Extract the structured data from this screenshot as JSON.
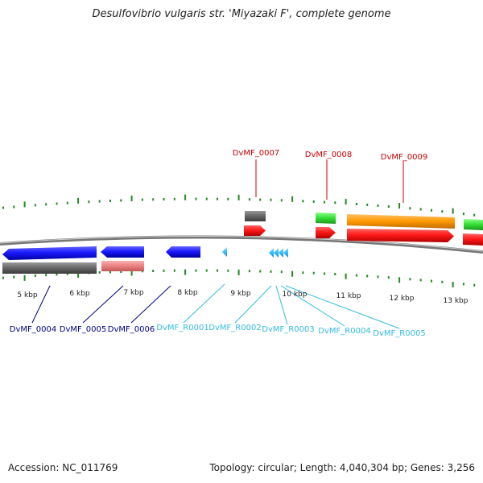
{
  "title": "Desulfovibrio vulgaris str. 'Miyazaki F', complete genome",
  "footer": {
    "accession": "Accession: NC_011769",
    "topology": "Topology: circular; Length: 4,040,304 bp; Genes: 3,256"
  },
  "scale_labels": [
    "5 kbp",
    "6 kbp",
    "7 kbp",
    "8 kbp",
    "9 kbp",
    "10 kbp",
    "11 kbp",
    "12 kbp",
    "13 kbp"
  ],
  "genes": [
    {
      "id": "DvMF_0004",
      "color": "#000080"
    },
    {
      "id": "DvMF_0005",
      "color": "#000080"
    },
    {
      "id": "DvMF_0006",
      "color": "#000080"
    },
    {
      "id": "DvMF_R0001",
      "color": "#33bbe0"
    },
    {
      "id": "DvMF_R0002",
      "color": "#33bbe0"
    },
    {
      "id": "DvMF_R0003",
      "color": "#33bbe0"
    },
    {
      "id": "DvMF_R0004",
      "color": "#33bbe0"
    },
    {
      "id": "DvMF_R0005",
      "color": "#33bbe0"
    },
    {
      "id": "DvMF_0007",
      "color": "#cc0000"
    },
    {
      "id": "DvMF_0008",
      "color": "#cc0000"
    },
    {
      "id": "DvMF_0009",
      "color": "#cc0000"
    }
  ],
  "colors": {
    "cds_forward": "#ff0000",
    "cds_reverse": "#0000ff",
    "gene_box": "#666666",
    "rrna": "#33ff33",
    "trna_reverse": "#33bbff",
    "pink_feature": "#ee8888",
    "orange_feature": "#ff9900",
    "tick": "#228822",
    "backbone": "#777777"
  }
}
